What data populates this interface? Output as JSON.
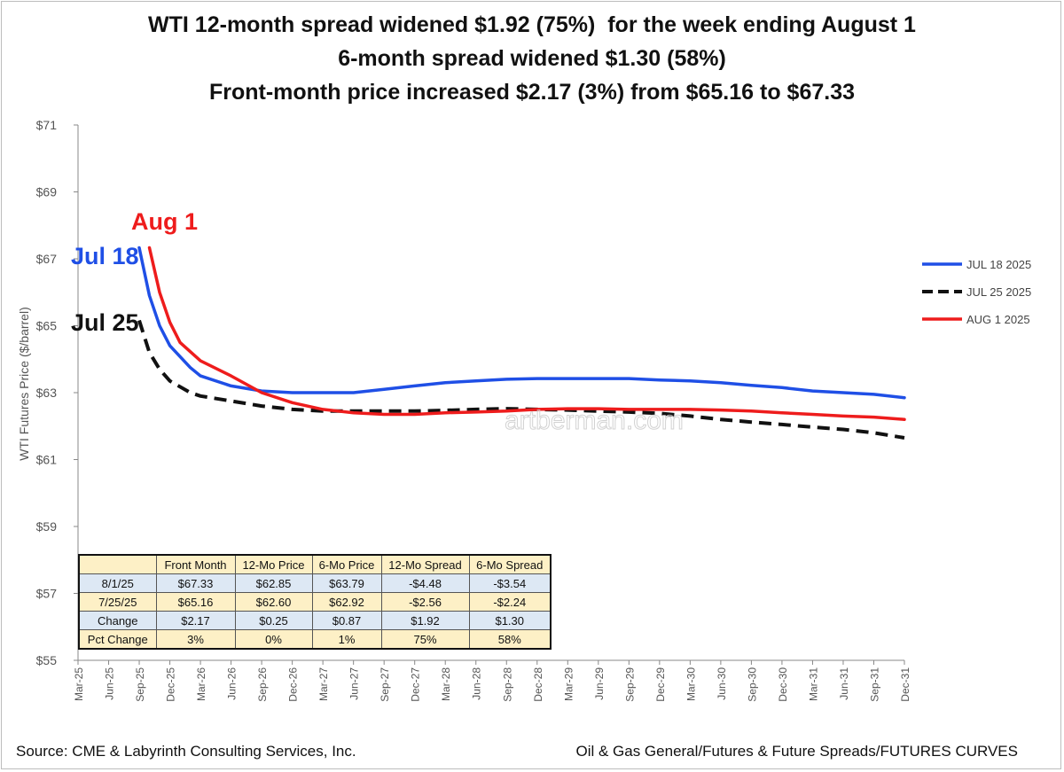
{
  "titles": {
    "line1": "WTI 12-month spread widened $1.92 (75%)  for the week ending August 1",
    "line2": "6-month spread widened $1.30 (58%)",
    "line3": "Front-month price increased $2.17 (3%) from $65.16 to $67.33"
  },
  "footer": {
    "source": "Source: CME & Labyrinth Consulting Services, Inc.",
    "path": "Oil & Gas General/Futures & Future Spreads/FUTURES CURVES"
  },
  "watermark": "artberman.com",
  "chart_data": {
    "type": "line",
    "ylabel": "WTI Futures  Price ($/barrel)",
    "ylim": [
      55,
      71
    ],
    "y_ticks": [
      "$71",
      "$69",
      "$67",
      "$65",
      "$63",
      "$61",
      "$59",
      "$57",
      "$55"
    ],
    "y_tick_values": [
      71,
      69,
      67,
      65,
      63,
      61,
      59,
      57,
      55
    ],
    "x_labels": [
      "Mar-25",
      "Jun-25",
      "Sep-25",
      "Dec-25",
      "Mar-26",
      "Jun-26",
      "Sep-26",
      "Dec-26",
      "Mar-27",
      "Jun-27",
      "Sep-27",
      "Dec-27",
      "Mar-28",
      "Jun-28",
      "Sep-28",
      "Dec-28",
      "Mar-29",
      "Jun-29",
      "Sep-29",
      "Dec-29",
      "Mar-30",
      "Jun-30",
      "Sep-30",
      "Dec-30",
      "Mar-31",
      "Jun-31",
      "Sep-31",
      "Dec-31"
    ],
    "grid": false,
    "legend_position": "right",
    "series": [
      {
        "name": "JUL 18 2025",
        "color": "#1f4fe6",
        "dash": "solid",
        "x": [
          "Sep-25",
          "Oct-25",
          "Nov-25",
          "Dec-25",
          "Feb-26",
          "Mar-26",
          "Jun-26",
          "Sep-26",
          "Dec-26",
          "Mar-27",
          "Jun-27",
          "Sep-27",
          "Dec-27",
          "Mar-28",
          "Jun-28",
          "Sep-28",
          "Dec-28",
          "Mar-29",
          "Jun-29",
          "Sep-29",
          "Dec-29",
          "Mar-30",
          "Jun-30",
          "Sep-30",
          "Dec-30",
          "Mar-31",
          "Jun-31",
          "Sep-31",
          "Dec-31"
        ],
        "y": [
          67.33,
          65.9,
          65.0,
          64.4,
          63.75,
          63.5,
          63.2,
          63.05,
          63.0,
          63.0,
          63.0,
          63.1,
          63.2,
          63.3,
          63.35,
          63.4,
          63.42,
          63.42,
          63.42,
          63.42,
          63.38,
          63.35,
          63.3,
          63.22,
          63.15,
          63.05,
          63.0,
          62.95,
          62.85
        ]
      },
      {
        "name": "JUL 25 2025",
        "color": "#111111",
        "dash": "dashed",
        "x": [
          "Sep-25",
          "Oct-25",
          "Nov-25",
          "Dec-25",
          "Feb-26",
          "Mar-26",
          "Jun-26",
          "Sep-26",
          "Dec-26",
          "Mar-27",
          "Jun-27",
          "Sep-27",
          "Dec-27",
          "Mar-28",
          "Jun-28",
          "Sep-28",
          "Dec-28",
          "Mar-29",
          "Jun-29",
          "Sep-29",
          "Dec-29",
          "Mar-30",
          "Jun-30",
          "Sep-30",
          "Dec-30",
          "Mar-31",
          "Jun-31",
          "Sep-31",
          "Dec-31"
        ],
        "y": [
          65.16,
          64.2,
          63.7,
          63.35,
          63.0,
          62.9,
          62.75,
          62.6,
          62.5,
          62.45,
          62.45,
          62.45,
          62.45,
          62.47,
          62.5,
          62.52,
          62.5,
          62.48,
          62.45,
          62.42,
          62.38,
          62.3,
          62.2,
          62.12,
          62.05,
          61.97,
          61.9,
          61.8,
          61.65
        ]
      },
      {
        "name": "AUG 1 2025",
        "color": "#ee1c1c",
        "dash": "solid",
        "x": [
          "Oct-25",
          "Nov-25",
          "Dec-25",
          "Jan-26",
          "Mar-26",
          "Jun-26",
          "Sep-26",
          "Dec-26",
          "Mar-27",
          "Jun-27",
          "Sep-27",
          "Dec-27",
          "Mar-28",
          "Jun-28",
          "Sep-28",
          "Dec-28",
          "Mar-29",
          "Jun-29",
          "Sep-29",
          "Dec-29",
          "Mar-30",
          "Jun-30",
          "Sep-30",
          "Dec-30",
          "Mar-31",
          "Jun-31",
          "Sep-31",
          "Dec-31"
        ],
        "y": [
          67.33,
          66.0,
          65.1,
          64.5,
          63.95,
          63.5,
          63.0,
          62.7,
          62.5,
          62.4,
          62.35,
          62.35,
          62.4,
          62.42,
          62.45,
          62.5,
          62.52,
          62.52,
          62.5,
          62.5,
          62.5,
          62.48,
          62.45,
          62.4,
          62.35,
          62.3,
          62.27,
          62.2
        ]
      }
    ],
    "annotations": [
      {
        "text": "Aug 1",
        "color": "#ee1c1c"
      },
      {
        "text": "Jul 18",
        "color": "#1f4fe6"
      },
      {
        "text": "Jul 25",
        "color": "#111111"
      }
    ]
  },
  "table": {
    "headers": [
      "",
      "Front Month",
      "12-Mo Price",
      "6-Mo Price",
      "12-Mo Spread",
      "6-Mo Spread"
    ],
    "rows": [
      [
        "8/1/25",
        "$67.33",
        "$62.85",
        "$63.79",
        "-$4.48",
        "-$3.54"
      ],
      [
        "7/25/25",
        "$65.16",
        "$62.60",
        "$62.92",
        "-$2.56",
        "-$2.24"
      ],
      [
        "Change",
        "$2.17",
        "$0.25",
        "$0.87",
        "$1.92",
        "$1.30"
      ],
      [
        "Pct Change",
        "3%",
        "0%",
        "1%",
        "75%",
        "58%"
      ]
    ]
  }
}
